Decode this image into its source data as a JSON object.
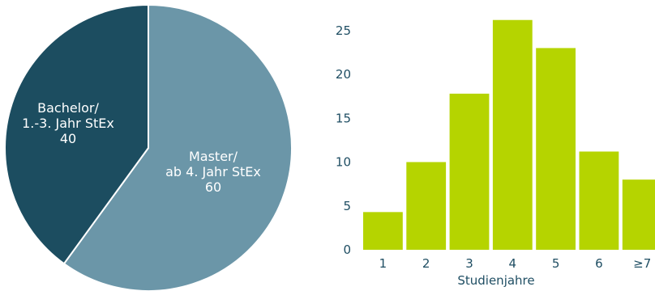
{
  "chart_data": [
    {
      "type": "pie",
      "slices": [
        {
          "label": [
            "Master/",
            "ab 4. Jahr StEx",
            "60"
          ],
          "value": 60,
          "color": "#6b96a8"
        },
        {
          "label": [
            "Bachelor/",
            "1.-3. Jahr StEx",
            "40"
          ],
          "value": 40,
          "color": "#1c4d60"
        }
      ],
      "label_color": "#ffffff"
    },
    {
      "type": "bar",
      "categories": [
        "1",
        "2",
        "3",
        "4",
        "5",
        "6",
        "≥7"
      ],
      "values": [
        4.3,
        10,
        17.8,
        26.2,
        23,
        11.2,
        8
      ],
      "xlabel": "Studienjahre",
      "ylabel": "",
      "ylim": [
        0,
        28
      ],
      "yticks": [
        0,
        5,
        10,
        15,
        20,
        25
      ],
      "bar_color": "#b5d400",
      "grid": false
    }
  ]
}
